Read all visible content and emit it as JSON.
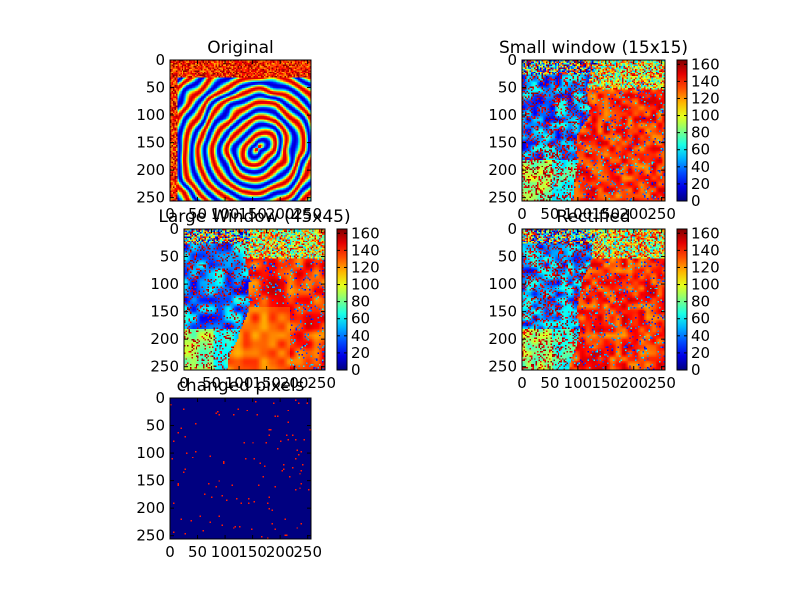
{
  "chart_data": [
    {
      "type": "heatmap",
      "title": "Original",
      "xlim": [
        0,
        256
      ],
      "ylim": [
        256,
        0
      ],
      "xticks": [
        "0",
        "50",
        "100",
        "150",
        "200",
        "250"
      ],
      "yticks": [
        "0",
        "50",
        "100",
        "150",
        "200",
        "250"
      ],
      "colormap": "jet",
      "content": "fingerprint-ridges",
      "colorbar": null
    },
    {
      "type": "heatmap",
      "title": "Small window (15x15)",
      "xlim": [
        0,
        256
      ],
      "ylim": [
        256,
        0
      ],
      "xticks": [
        "0",
        "50",
        "100",
        "150",
        "200",
        "250"
      ],
      "yticks": [
        "0",
        "50",
        "100",
        "150",
        "200",
        "250"
      ],
      "colormap": "jet",
      "content": "orientation-field",
      "colorbar": {
        "range": [
          0,
          165
        ],
        "ticks": [
          "0",
          "20",
          "40",
          "60",
          "80",
          "100",
          "120",
          "140",
          "160"
        ]
      }
    },
    {
      "type": "heatmap",
      "title": "Large Window (45x45)",
      "xlim": [
        0,
        256
      ],
      "ylim": [
        256,
        0
      ],
      "xticks": [
        "0",
        "50",
        "100",
        "150",
        "200",
        "250"
      ],
      "yticks": [
        "0",
        "50",
        "100",
        "150",
        "200",
        "250"
      ],
      "colormap": "jet",
      "content": "orientation-field-large",
      "colorbar": {
        "range": [
          0,
          165
        ],
        "ticks": [
          "0",
          "20",
          "40",
          "60",
          "80",
          "100",
          "120",
          "140",
          "160"
        ]
      }
    },
    {
      "type": "heatmap",
      "title": "Rectified",
      "xlim": [
        0,
        256
      ],
      "ylim": [
        256,
        0
      ],
      "xticks": [
        "0",
        "50",
        "100",
        "150",
        "200",
        "250"
      ],
      "yticks": [
        "0",
        "50",
        "100",
        "150",
        "200",
        "250"
      ],
      "colormap": "jet",
      "content": "orientation-field",
      "colorbar": {
        "range": [
          0,
          165
        ],
        "ticks": [
          "0",
          "20",
          "40",
          "60",
          "80",
          "100",
          "120",
          "140",
          "160"
        ]
      }
    },
    {
      "type": "heatmap",
      "title": "changed pixels",
      "xlim": [
        0,
        256
      ],
      "ylim": [
        256,
        0
      ],
      "xticks": [
        "0",
        "50",
        "100",
        "150",
        "200",
        "250"
      ],
      "yticks": [
        "0",
        "50",
        "100",
        "150",
        "200",
        "250"
      ],
      "colormap": "jet",
      "content": "sparse-changes",
      "colorbar": null
    }
  ]
}
